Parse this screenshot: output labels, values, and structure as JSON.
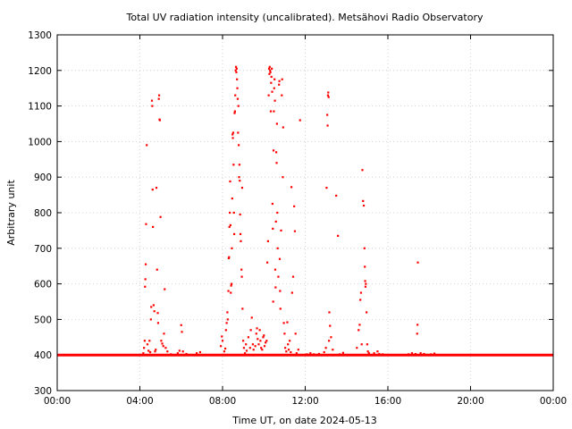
{
  "chart_data": {
    "type": "scatter",
    "title": "Total UV radiation intensity (uncalibrated). Metsähovi Radio Observatory",
    "xlabel": "Time UT, on date 2024-05-13",
    "ylabel": "Arbitrary unit",
    "xlim": [
      "00:00",
      "24:00"
    ],
    "ylim": [
      300,
      1300
    ],
    "grid": true,
    "point_color": "#ff0000",
    "y_ticks": [
      "300",
      "400",
      "500",
      "600",
      "700",
      "800",
      "900",
      "1000",
      "1100",
      "1200",
      "1300"
    ],
    "x_ticks": [
      "00:00",
      "04:00",
      "08:00",
      "12:00",
      "16:00",
      "20:00",
      "00:00"
    ],
    "baseline": {
      "value": 400,
      "from": "00:00",
      "to": "24:00"
    },
    "series": [
      {
        "points": [
          [
            "04:10",
            405
          ],
          [
            "04:12",
            420
          ],
          [
            "04:14",
            440
          ],
          [
            "04:15",
            592
          ],
          [
            "04:16",
            613
          ],
          [
            "04:17",
            655
          ],
          [
            "04:18",
            768
          ],
          [
            "04:20",
            990
          ],
          [
            "04:22",
            430
          ],
          [
            "04:25",
            412
          ],
          [
            "04:28",
            440
          ],
          [
            "04:30",
            408
          ],
          [
            "04:32",
            500
          ],
          [
            "04:33",
            535
          ],
          [
            "04:35",
            1115
          ],
          [
            "04:36",
            1100
          ],
          [
            "04:37",
            865
          ],
          [
            "04:38",
            760
          ],
          [
            "04:40",
            540
          ],
          [
            "04:42",
            523
          ],
          [
            "04:44",
            410
          ],
          [
            "04:46",
            415
          ],
          [
            "04:48",
            870
          ],
          [
            "04:50",
            640
          ],
          [
            "04:52",
            518
          ],
          [
            "04:53",
            490
          ],
          [
            "04:55",
            1120
          ],
          [
            "04:56",
            1130
          ],
          [
            "04:57",
            1062
          ],
          [
            "04:58",
            1060
          ],
          [
            "05:00",
            788
          ],
          [
            "05:02",
            440
          ],
          [
            "05:05",
            432
          ],
          [
            "05:08",
            425
          ],
          [
            "05:10",
            460
          ],
          [
            "05:12",
            585
          ],
          [
            "05:15",
            420
          ],
          [
            "05:20",
            410
          ],
          [
            "05:30",
            402
          ],
          [
            "05:50",
            405
          ],
          [
            "05:55",
            412
          ],
          [
            "06:00",
            484
          ],
          [
            "06:02",
            465
          ],
          [
            "06:05",
            410
          ],
          [
            "06:15",
            403
          ],
          [
            "06:45",
            405
          ],
          [
            "06:55",
            408
          ],
          [
            "07:55",
            425
          ],
          [
            "07:58",
            452
          ],
          [
            "08:00",
            440
          ],
          [
            "08:05",
            410
          ],
          [
            "08:08",
            418
          ],
          [
            "08:10",
            470
          ],
          [
            "08:12",
            490
          ],
          [
            "08:14",
            520
          ],
          [
            "08:15",
            500
          ],
          [
            "08:17",
            580
          ],
          [
            "08:18",
            672
          ],
          [
            "08:19",
            675
          ],
          [
            "08:20",
            760
          ],
          [
            "08:21",
            800
          ],
          [
            "08:22",
            888
          ],
          [
            "08:23",
            765
          ],
          [
            "08:24",
            575
          ],
          [
            "08:25",
            595
          ],
          [
            "08:26",
            600
          ],
          [
            "08:27",
            700
          ],
          [
            "08:28",
            840
          ],
          [
            "08:29",
            1020
          ],
          [
            "08:30",
            1010
          ],
          [
            "08:31",
            1025
          ],
          [
            "08:32",
            935
          ],
          [
            "08:33",
            800
          ],
          [
            "08:34",
            740
          ],
          [
            "08:35",
            1080
          ],
          [
            "08:36",
            1085
          ],
          [
            "08:37",
            1130
          ],
          [
            "08:38",
            1200
          ],
          [
            "08:39",
            1210
          ],
          [
            "08:40",
            1195
          ],
          [
            "08:41",
            1205
          ],
          [
            "08:42",
            1175
          ],
          [
            "08:43",
            1150
          ],
          [
            "08:44",
            1120
          ],
          [
            "08:45",
            1025
          ],
          [
            "08:46",
            1100
          ],
          [
            "08:47",
            990
          ],
          [
            "08:48",
            900
          ],
          [
            "08:49",
            935
          ],
          [
            "08:50",
            890
          ],
          [
            "08:51",
            795
          ],
          [
            "08:52",
            740
          ],
          [
            "08:53",
            720
          ],
          [
            "08:55",
            640
          ],
          [
            "08:56",
            620
          ],
          [
            "08:57",
            870
          ],
          [
            "08:58",
            530
          ],
          [
            "09:00",
            440
          ],
          [
            "09:02",
            420
          ],
          [
            "09:05",
            405
          ],
          [
            "09:08",
            430
          ],
          [
            "09:10",
            412
          ],
          [
            "09:15",
            450
          ],
          [
            "09:20",
            420
          ],
          [
            "09:22",
            470
          ],
          [
            "09:25",
            505
          ],
          [
            "09:28",
            430
          ],
          [
            "09:30",
            415
          ],
          [
            "09:35",
            425
          ],
          [
            "09:38",
            460
          ],
          [
            "09:40",
            475
          ],
          [
            "09:42",
            445
          ],
          [
            "09:45",
            430
          ],
          [
            "09:48",
            470
          ],
          [
            "09:50",
            440
          ],
          [
            "09:52",
            420
          ],
          [
            "09:55",
            415
          ],
          [
            "09:58",
            450
          ],
          [
            "10:00",
            455
          ],
          [
            "10:02",
            425
          ],
          [
            "10:05",
            435
          ],
          [
            "10:08",
            440
          ],
          [
            "10:10",
            660
          ],
          [
            "10:12",
            720
          ],
          [
            "10:14",
            1130
          ],
          [
            "10:15",
            1205
          ],
          [
            "10:16",
            1190
          ],
          [
            "10:17",
            1210
          ],
          [
            "10:18",
            1200
          ],
          [
            "10:19",
            1195
          ],
          [
            "10:20",
            1085
          ],
          [
            "10:21",
            1165
          ],
          [
            "10:22",
            1182
          ],
          [
            "10:23",
            1205
          ],
          [
            "10:24",
            1140
          ],
          [
            "10:25",
            825
          ],
          [
            "10:26",
            755
          ],
          [
            "10:27",
            550
          ],
          [
            "10:28",
            975
          ],
          [
            "10:29",
            1085
          ],
          [
            "10:30",
            1150
          ],
          [
            "10:31",
            1175
          ],
          [
            "10:32",
            1115
          ],
          [
            "10:33",
            640
          ],
          [
            "10:34",
            590
          ],
          [
            "10:35",
            775
          ],
          [
            "10:36",
            970
          ],
          [
            "10:37",
            940
          ],
          [
            "10:38",
            1050
          ],
          [
            "10:39",
            800
          ],
          [
            "10:40",
            700
          ],
          [
            "10:42",
            620
          ],
          [
            "10:44",
            1160
          ],
          [
            "10:45",
            1170
          ],
          [
            "10:46",
            670
          ],
          [
            "10:47",
            580
          ],
          [
            "10:48",
            530
          ],
          [
            "10:50",
            750
          ],
          [
            "10:52",
            1130
          ],
          [
            "10:53",
            1175
          ],
          [
            "10:55",
            900
          ],
          [
            "10:56",
            1040
          ],
          [
            "10:58",
            490
          ],
          [
            "11:00",
            460
          ],
          [
            "11:02",
            420
          ],
          [
            "11:05",
            410
          ],
          [
            "11:08",
            492
          ],
          [
            "11:10",
            430
          ],
          [
            "11:12",
            415
          ],
          [
            "11:15",
            440
          ],
          [
            "11:18",
            408
          ],
          [
            "11:20",
            872
          ],
          [
            "11:22",
            575
          ],
          [
            "11:25",
            620
          ],
          [
            "11:28",
            818
          ],
          [
            "11:30",
            748
          ],
          [
            "11:32",
            460
          ],
          [
            "11:35",
            405
          ],
          [
            "11:40",
            415
          ],
          [
            "11:45",
            1060
          ],
          [
            "11:50",
            400
          ],
          [
            "12:05",
            402
          ],
          [
            "12:15",
            405
          ],
          [
            "12:25",
            402
          ],
          [
            "12:40",
            403
          ],
          [
            "12:55",
            408
          ],
          [
            "13:00",
            420
          ],
          [
            "13:02",
            870
          ],
          [
            "13:04",
            1075
          ],
          [
            "13:05",
            1045
          ],
          [
            "13:06",
            1130
          ],
          [
            "13:07",
            1138
          ],
          [
            "13:08",
            1125
          ],
          [
            "13:09",
            440
          ],
          [
            "13:10",
            520
          ],
          [
            "13:12",
            482
          ],
          [
            "13:15",
            450
          ],
          [
            "13:20",
            415
          ],
          [
            "13:30",
            848
          ],
          [
            "13:35",
            735
          ],
          [
            "13:40",
            402
          ],
          [
            "13:50",
            406
          ],
          [
            "14:30",
            420
          ],
          [
            "14:35",
            470
          ],
          [
            "14:38",
            485
          ],
          [
            "14:40",
            555
          ],
          [
            "14:42",
            575
          ],
          [
            "14:44",
            430
          ],
          [
            "14:46",
            920
          ],
          [
            "14:48",
            833
          ],
          [
            "14:50",
            820
          ],
          [
            "14:52",
            700
          ],
          [
            "14:53",
            648
          ],
          [
            "14:54",
            608
          ],
          [
            "14:55",
            592
          ],
          [
            "14:56",
            600
          ],
          [
            "14:58",
            520
          ],
          [
            "15:00",
            430
          ],
          [
            "15:02",
            410
          ],
          [
            "15:05",
            405
          ],
          [
            "15:20",
            405
          ],
          [
            "15:30",
            410
          ],
          [
            "15:35",
            403
          ],
          [
            "15:45",
            402
          ],
          [
            "17:00",
            402
          ],
          [
            "17:10",
            405
          ],
          [
            "17:20",
            403
          ],
          [
            "17:25",
            460
          ],
          [
            "17:26",
            485
          ],
          [
            "17:27",
            660
          ],
          [
            "17:35",
            405
          ],
          [
            "17:45",
            403
          ],
          [
            "18:05",
            402
          ],
          [
            "18:15",
            404
          ]
        ]
      }
    ]
  }
}
